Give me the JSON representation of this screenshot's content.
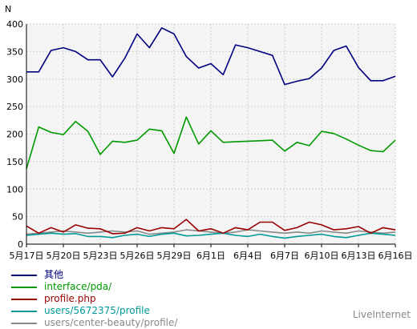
{
  "chart_data": {
    "type": "line",
    "ylabel": "N",
    "ylim": [
      0,
      400
    ],
    "yticks": [
      0,
      50,
      100,
      150,
      200,
      250,
      300,
      350,
      400
    ],
    "x": [
      "5月17日",
      "5月18日",
      "5月19日",
      "5月20日",
      "5月21日",
      "5月22日",
      "5月23日",
      "5月24日",
      "5月25日",
      "5月26日",
      "5月27日",
      "5月28日",
      "5月29日",
      "5月30日",
      "5月31日",
      "6月1日",
      "6月2日",
      "6月3日",
      "6月4日",
      "6月5日",
      "6月6日",
      "6月7日",
      "6月8日",
      "6月9日",
      "6月10日",
      "6月11日",
      "6月12日",
      "6月13日",
      "6月14日",
      "6月15日",
      "6月16日"
    ],
    "xtick_labels": [
      "5月17日",
      "5月20日",
      "5月23日",
      "5月26日",
      "5月29日",
      "6月1日",
      "6月4日",
      "6月7日",
      "6月10日",
      "6月13日",
      "6月16日"
    ],
    "xtick_every": 3,
    "grid": true,
    "background": "#f4f4f4",
    "legend_position": "bottom-left",
    "series": [
      {
        "name": "其他",
        "color": "#000080",
        "values": [
          313,
          313,
          352,
          357,
          350,
          335,
          335,
          304,
          338,
          382,
          357,
          393,
          382,
          341,
          320,
          328,
          308,
          362,
          357,
          350,
          343,
          290,
          296,
          301,
          320,
          352,
          360,
          321,
          297,
          297,
          305
        ]
      },
      {
        "name": "interface/pda/",
        "color": "#009900",
        "values": [
          137,
          213,
          203,
          199,
          223,
          205,
          163,
          187,
          185,
          189,
          209,
          206,
          165,
          231,
          182,
          206,
          185,
          186,
          187,
          188,
          189,
          169,
          185,
          179,
          205,
          201,
          191,
          180,
          170,
          168,
          189
        ]
      },
      {
        "name": "profile.php",
        "color": "#990000",
        "values": [
          33,
          20,
          30,
          22,
          35,
          29,
          28,
          19,
          20,
          30,
          24,
          30,
          28,
          45,
          24,
          28,
          20,
          30,
          26,
          40,
          40,
          25,
          30,
          40,
          35,
          26,
          28,
          32,
          20,
          30,
          26
        ]
      },
      {
        "name": "users/5672375/profile",
        "color": "#009999",
        "values": [
          16,
          18,
          20,
          18,
          19,
          14,
          14,
          12,
          16,
          18,
          14,
          18,
          20,
          15,
          16,
          18,
          20,
          16,
          14,
          18,
          14,
          11,
          14,
          16,
          18,
          14,
          12,
          16,
          20,
          18,
          16
        ]
      },
      {
        "name": "users/center-beauty/profile/",
        "color": "#888888",
        "values": [
          18,
          20,
          22,
          24,
          22,
          20,
          22,
          24,
          22,
          24,
          18,
          20,
          22,
          26,
          24,
          22,
          20,
          22,
          26,
          24,
          22,
          20,
          22,
          20,
          24,
          22,
          20,
          24,
          22,
          20,
          22
        ]
      }
    ]
  },
  "branding": "LiveInternet"
}
